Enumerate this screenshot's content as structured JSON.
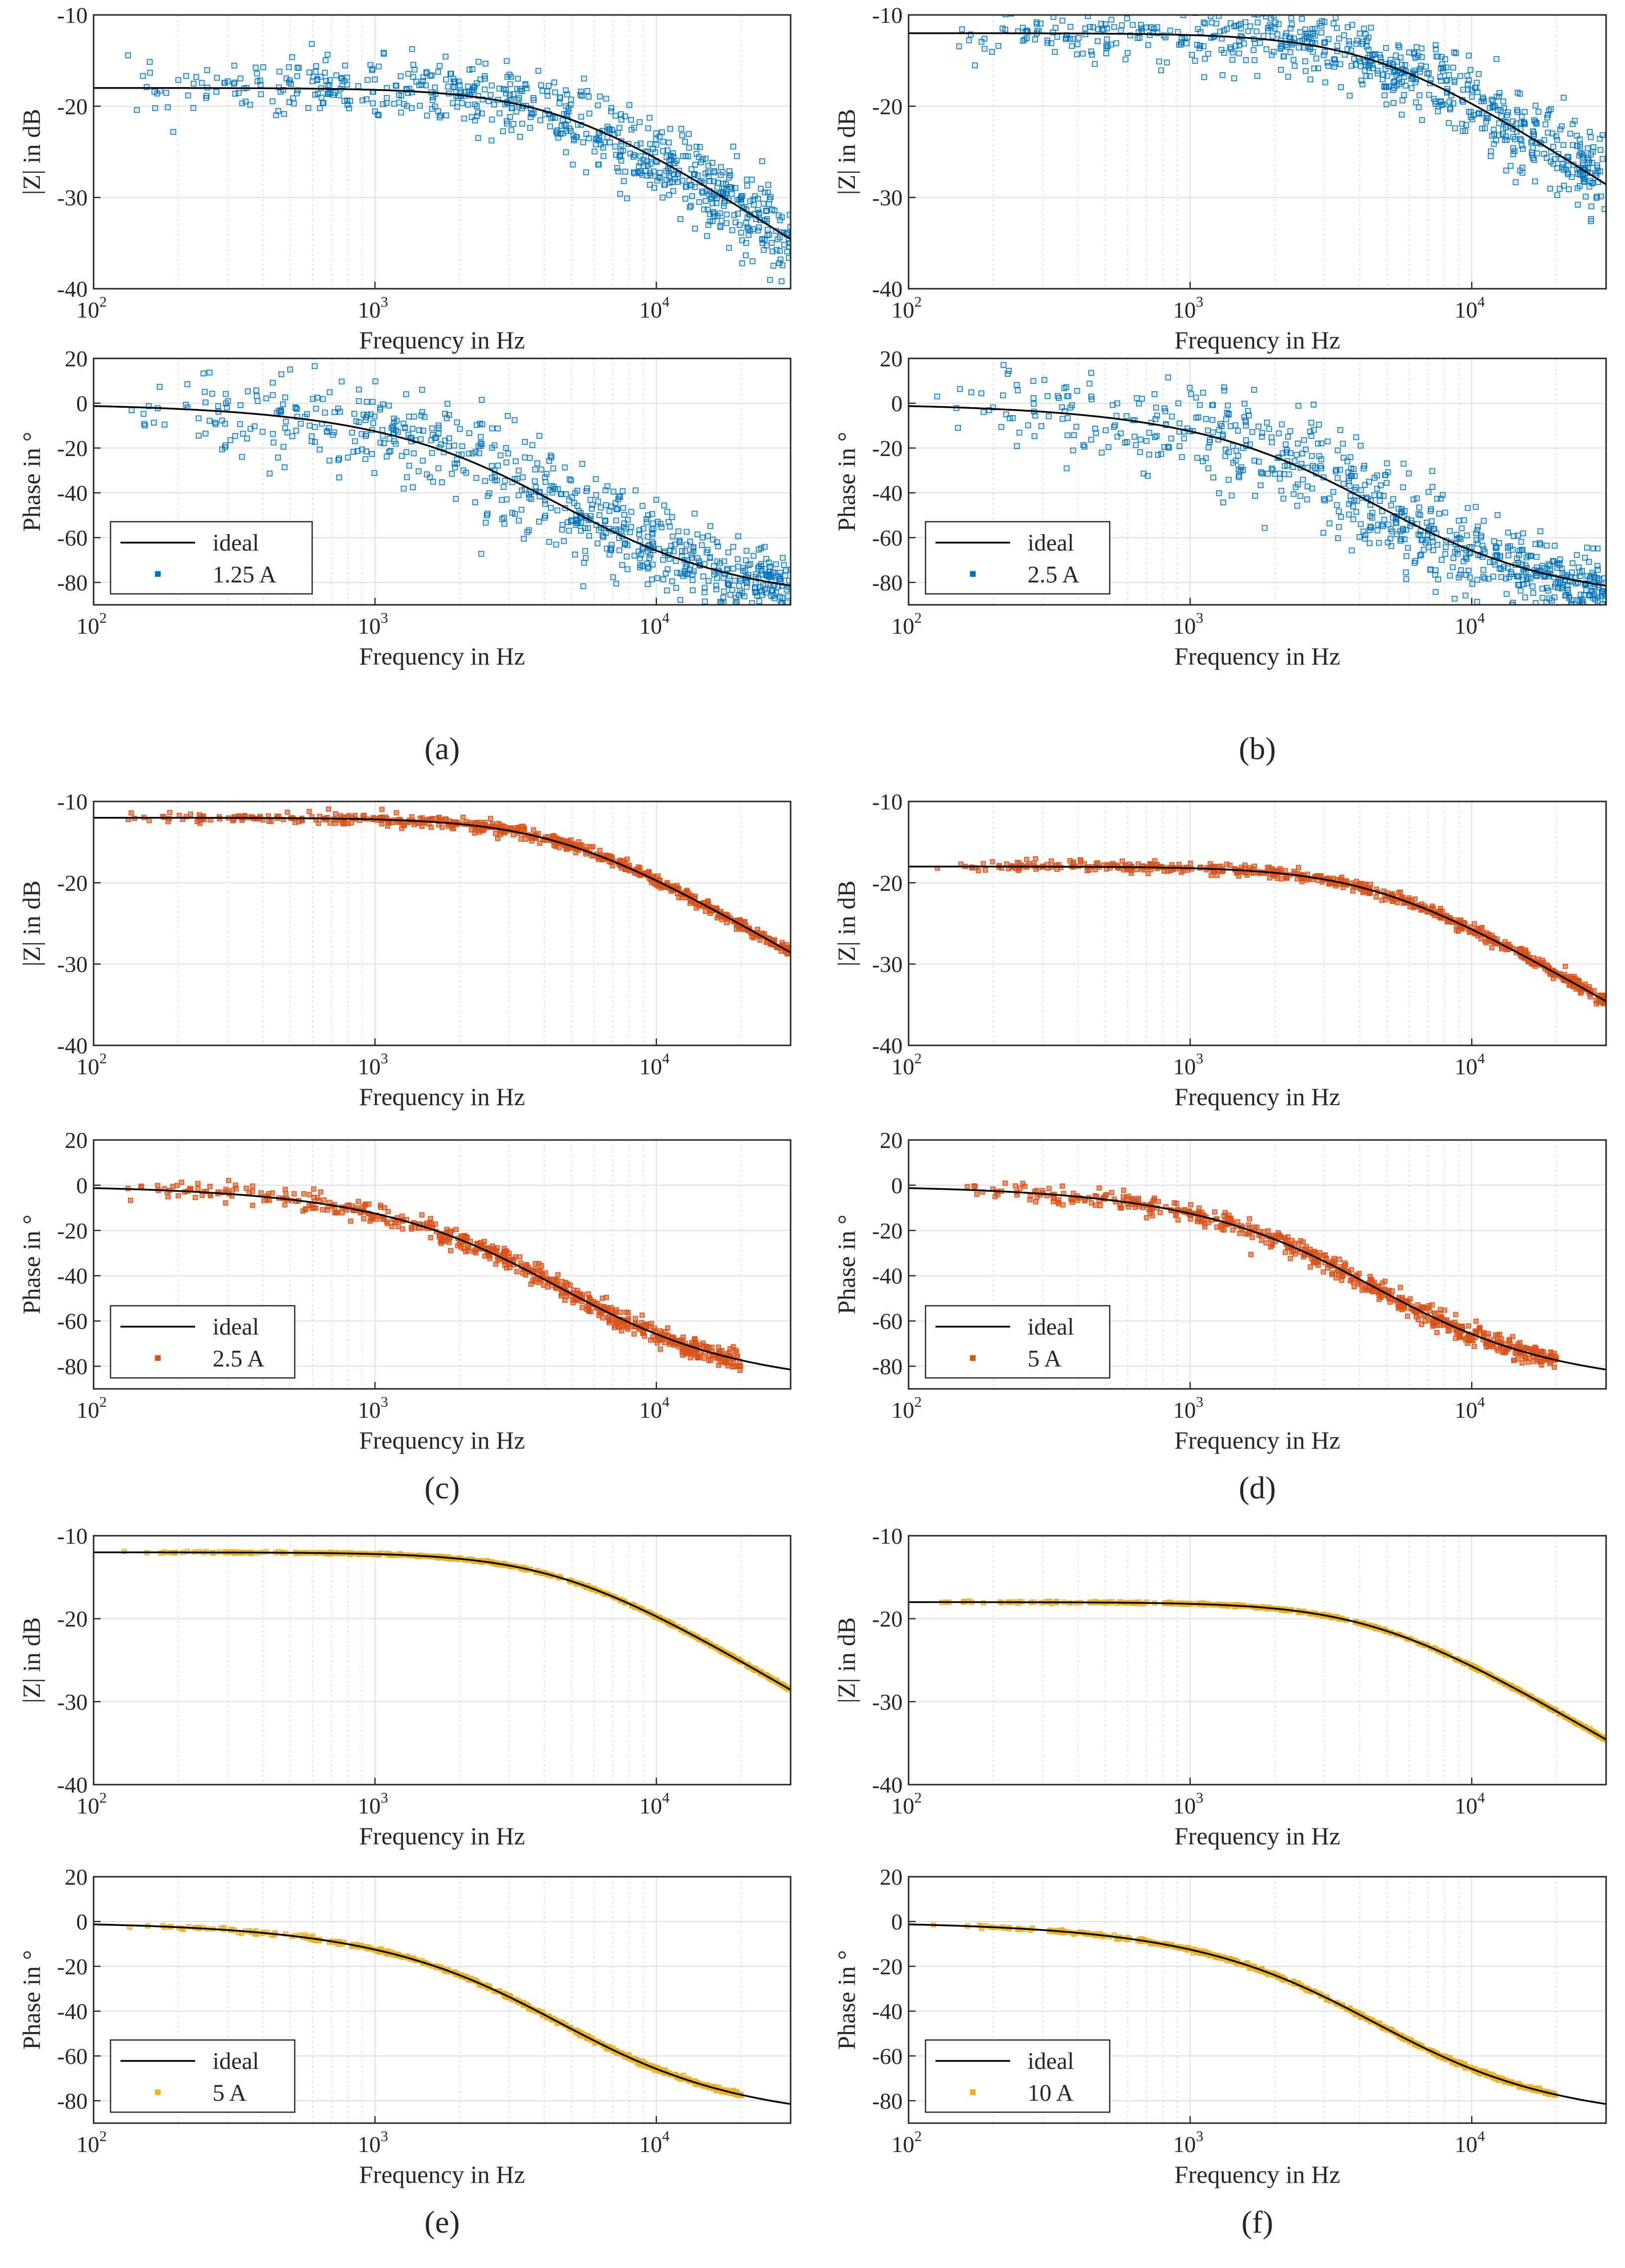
{
  "colors": {
    "blue": "#0072bd",
    "orange": "#d95319",
    "yellow": "#edb120",
    "ideal": "#000000",
    "grid": "#dfdfdf",
    "axes": "#262626"
  },
  "layout_cols": 2,
  "chart_data": [
    {
      "panel": "a",
      "caption": "(a)",
      "data_color": "#0072bd",
      "noise": "high",
      "magnitude": {
        "type": "scatter",
        "xscale": "log",
        "xlim": [
          100,
          30000
        ],
        "ylim": [
          -40,
          -10
        ],
        "yticks": [
          -40,
          -30,
          -20,
          -10
        ],
        "xticks": [
          100,
          1000,
          10000
        ],
        "xtick_labels": [
          "10",
          "10",
          "10"
        ],
        "xtick_exponents": [
          "2",
          "3",
          "4"
        ],
        "xlabel": "Frequency in Hz",
        "ylabel": "|Z| in dB",
        "grid": true,
        "ideal": {
          "name": "ideal",
          "dc_gain_db": -18.0,
          "corner_hz": 4500
        },
        "measured": {
          "name": "1.25 A",
          "marker": "square"
        }
      },
      "phase": {
        "type": "scatter",
        "xscale": "log",
        "xlim": [
          100,
          30000
        ],
        "ylim": [
          -90,
          20
        ],
        "yticks": [
          -80,
          -60,
          -40,
          -20,
          0,
          20
        ],
        "xticks": [
          100,
          1000,
          10000
        ],
        "xtick_labels": [
          "10",
          "10",
          "10"
        ],
        "xtick_exponents": [
          "2",
          "3",
          "4"
        ],
        "xlabel": "Frequency in Hz",
        "ylabel": "Phase in °",
        "grid": true,
        "legend": {
          "position": "bottom-left",
          "entries": [
            "ideal",
            "1.25 A"
          ]
        },
        "ideal": {
          "name": "ideal",
          "corner_hz": 4500
        },
        "measured": {
          "name": "1.25 A",
          "marker": "square"
        }
      }
    },
    {
      "panel": "b",
      "caption": "(b)",
      "data_color": "#0072bd",
      "noise": "high",
      "magnitude": {
        "type": "scatter",
        "xscale": "log",
        "xlim": [
          100,
          30000
        ],
        "ylim": [
          -40,
          -10
        ],
        "yticks": [
          -40,
          -30,
          -20,
          -10
        ],
        "xticks": [
          100,
          1000,
          10000
        ],
        "xtick_labels": [
          "10",
          "10",
          "10"
        ],
        "xtick_exponents": [
          "2",
          "3",
          "4"
        ],
        "xlabel": "Frequency in Hz",
        "ylabel": "|Z| in dB",
        "grid": true,
        "ideal": {
          "name": "ideal",
          "dc_gain_db": -12.0,
          "corner_hz": 4500
        },
        "measured": {
          "name": "2.5 A",
          "marker": "square"
        }
      },
      "phase": {
        "type": "scatter",
        "xscale": "log",
        "xlim": [
          100,
          30000
        ],
        "ylim": [
          -90,
          20
        ],
        "yticks": [
          -80,
          -60,
          -40,
          -20,
          0,
          20
        ],
        "xticks": [
          100,
          1000,
          10000
        ],
        "xtick_labels": [
          "10",
          "10",
          "10"
        ],
        "xtick_exponents": [
          "2",
          "3",
          "4"
        ],
        "xlabel": "Frequency in Hz",
        "ylabel": "Phase in °",
        "grid": true,
        "legend": {
          "position": "bottom-left",
          "entries": [
            "ideal",
            "2.5 A"
          ]
        },
        "ideal": {
          "name": "ideal",
          "corner_hz": 4500
        },
        "measured": {
          "name": "2.5 A",
          "marker": "square"
        }
      }
    },
    {
      "panel": "c",
      "caption": "(c)",
      "data_color": "#d95319",
      "noise": "medium",
      "magnitude": {
        "type": "scatter",
        "xscale": "log",
        "xlim": [
          100,
          30000
        ],
        "ylim": [
          -40,
          -10
        ],
        "yticks": [
          -40,
          -30,
          -20,
          -10
        ],
        "xticks": [
          100,
          1000,
          10000
        ],
        "xtick_labels": [
          "10",
          "10",
          "10"
        ],
        "xtick_exponents": [
          "2",
          "3",
          "4"
        ],
        "xlabel": "Frequency in Hz",
        "ylabel": "|Z| in dB",
        "grid": true,
        "ideal": {
          "name": "ideal",
          "dc_gain_db": -12.0,
          "corner_hz": 4500
        },
        "measured": {
          "name": "2.5 A",
          "marker": "square"
        }
      },
      "phase": {
        "type": "scatter",
        "xscale": "log",
        "xlim": [
          100,
          30000
        ],
        "ylim": [
          -90,
          20
        ],
        "yticks": [
          -80,
          -60,
          -40,
          -20,
          0,
          20
        ],
        "xticks": [
          100,
          1000,
          10000
        ],
        "xtick_labels": [
          "10",
          "10",
          "10"
        ],
        "xtick_exponents": [
          "2",
          "3",
          "4"
        ],
        "xlabel": "Frequency in Hz",
        "ylabel": "Phase in °",
        "grid": true,
        "legend": {
          "position": "bottom-left",
          "entries": [
            "ideal",
            "2.5 A"
          ]
        },
        "ideal": {
          "name": "ideal",
          "corner_hz": 4500
        },
        "measured": {
          "name": "2.5 A",
          "marker": "square"
        }
      }
    },
    {
      "panel": "d",
      "caption": "(d)",
      "data_color": "#d95319",
      "noise": "medium",
      "magnitude": {
        "type": "scatter",
        "xscale": "log",
        "xlim": [
          100,
          30000
        ],
        "ylim": [
          -40,
          -10
        ],
        "yticks": [
          -40,
          -30,
          -20,
          -10
        ],
        "xticks": [
          100,
          1000,
          10000
        ],
        "xtick_labels": [
          "10",
          "10",
          "10"
        ],
        "xtick_exponents": [
          "2",
          "3",
          "4"
        ],
        "xlabel": "Frequency in Hz",
        "ylabel": "|Z| in dB",
        "grid": true,
        "ideal": {
          "name": "ideal",
          "dc_gain_db": -18.0,
          "corner_hz": 4500
        },
        "measured": {
          "name": "5 A",
          "marker": "square"
        }
      },
      "phase": {
        "type": "scatter",
        "xscale": "log",
        "xlim": [
          100,
          30000
        ],
        "ylim": [
          -90,
          20
        ],
        "yticks": [
          -80,
          -60,
          -40,
          -20,
          0,
          20
        ],
        "xticks": [
          100,
          1000,
          10000
        ],
        "xtick_labels": [
          "10",
          "10",
          "10"
        ],
        "xtick_exponents": [
          "2",
          "3",
          "4"
        ],
        "xlabel": "Frequency in Hz",
        "ylabel": "Phase in °",
        "grid": true,
        "legend": {
          "position": "bottom-left",
          "entries": [
            "ideal",
            "5 A"
          ]
        },
        "ideal": {
          "name": "ideal",
          "corner_hz": 4500
        },
        "measured": {
          "name": "5 A",
          "marker": "square"
        }
      }
    },
    {
      "panel": "e",
      "caption": "(e)",
      "data_color": "#edb120",
      "noise": "low",
      "magnitude": {
        "type": "scatter",
        "xscale": "log",
        "xlim": [
          100,
          30000
        ],
        "ylim": [
          -40,
          -10
        ],
        "yticks": [
          -40,
          -30,
          -20,
          -10
        ],
        "xticks": [
          100,
          1000,
          10000
        ],
        "xtick_labels": [
          "10",
          "10",
          "10"
        ],
        "xtick_exponents": [
          "2",
          "3",
          "4"
        ],
        "xlabel": "Frequency in Hz",
        "ylabel": "|Z| in dB",
        "grid": true,
        "ideal": {
          "name": "ideal",
          "dc_gain_db": -12.0,
          "corner_hz": 4500
        },
        "measured": {
          "name": "5 A",
          "marker": "square"
        }
      },
      "phase": {
        "type": "scatter",
        "xscale": "log",
        "xlim": [
          100,
          30000
        ],
        "ylim": [
          -90,
          20
        ],
        "yticks": [
          -80,
          -60,
          -40,
          -20,
          0,
          20
        ],
        "xticks": [
          100,
          1000,
          10000
        ],
        "xtick_labels": [
          "10",
          "10",
          "10"
        ],
        "xtick_exponents": [
          "2",
          "3",
          "4"
        ],
        "xlabel": "Frequency in Hz",
        "ylabel": "Phase in °",
        "grid": true,
        "legend": {
          "position": "bottom-left",
          "entries": [
            "ideal",
            "5 A"
          ]
        },
        "ideal": {
          "name": "ideal",
          "corner_hz": 4500
        },
        "measured": {
          "name": "5 A",
          "marker": "square"
        }
      }
    },
    {
      "panel": "f",
      "caption": "(f)",
      "data_color": "#edb120",
      "noise": "low",
      "magnitude": {
        "type": "scatter",
        "xscale": "log",
        "xlim": [
          100,
          30000
        ],
        "ylim": [
          -40,
          -10
        ],
        "yticks": [
          -40,
          -30,
          -20,
          -10
        ],
        "xticks": [
          100,
          1000,
          10000
        ],
        "xtick_labels": [
          "10",
          "10",
          "10"
        ],
        "xtick_exponents": [
          "2",
          "3",
          "4"
        ],
        "xlabel": "Frequency in Hz",
        "ylabel": "|Z| in dB",
        "grid": true,
        "ideal": {
          "name": "ideal",
          "dc_gain_db": -18.0,
          "corner_hz": 4500
        },
        "measured": {
          "name": "10 A",
          "marker": "square"
        }
      },
      "phase": {
        "type": "scatter",
        "xscale": "log",
        "xlim": [
          100,
          30000
        ],
        "ylim": [
          -90,
          20
        ],
        "yticks": [
          -80,
          -60,
          -40,
          -20,
          0,
          20
        ],
        "xticks": [
          100,
          1000,
          10000
        ],
        "xtick_labels": [
          "10",
          "10",
          "10"
        ],
        "xtick_exponents": [
          "2",
          "3",
          "4"
        ],
        "xlabel": "Frequency in Hz",
        "ylabel": "Phase in °",
        "grid": true,
        "legend": {
          "position": "bottom-left",
          "entries": [
            "ideal",
            "10 A"
          ]
        },
        "ideal": {
          "name": "ideal",
          "corner_hz": 4500
        },
        "measured": {
          "name": "10 A",
          "marker": "square"
        }
      }
    }
  ]
}
